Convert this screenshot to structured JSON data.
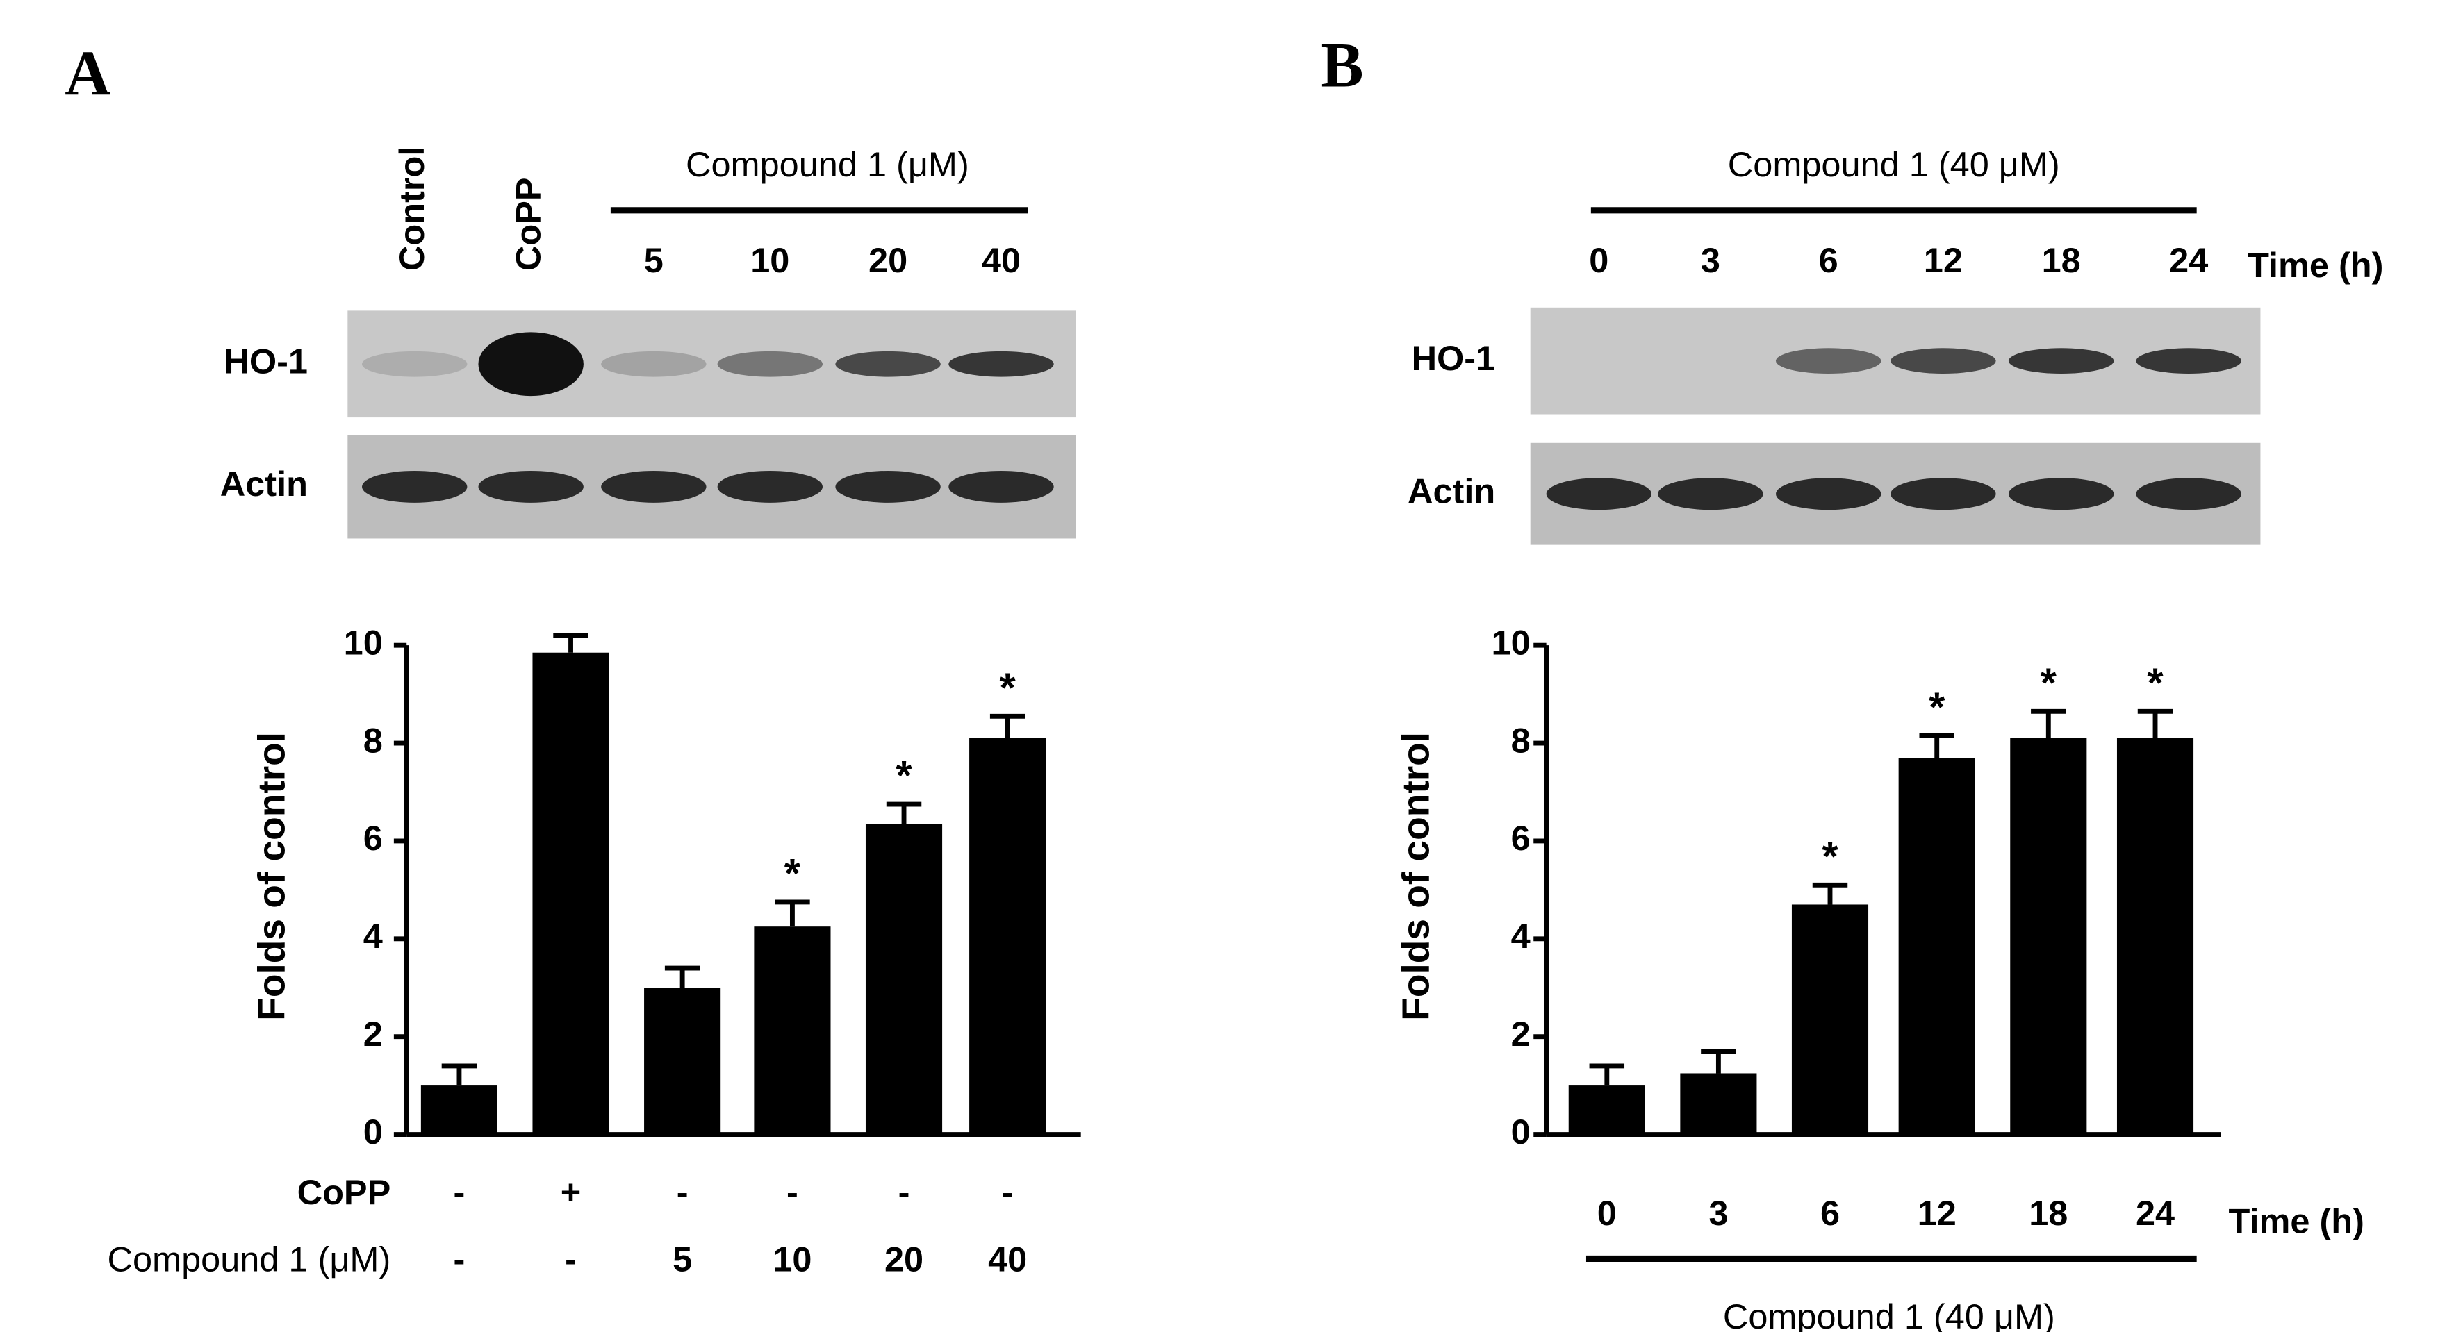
{
  "chart_data": [
    {
      "type": "bar",
      "panel_label": "A",
      "blot": {
        "header": "Compound 1 (μM)",
        "lanes": [
          "Control",
          "CoPP",
          "5",
          "10",
          "20",
          "40"
        ],
        "rows": [
          "HO-1",
          "Actin"
        ]
      },
      "category_rows": [
        {
          "name": "CoPP",
          "labels": [
            "-",
            "+",
            "-",
            "-",
            "-",
            "-"
          ]
        },
        {
          "name": "Compound 1 (μM)",
          "labels": [
            "-",
            "-",
            "5",
            "10",
            "20",
            "40"
          ]
        }
      ],
      "values": [
        1.0,
        9.85,
        3.0,
        4.25,
        6.35,
        8.1
      ],
      "errors": [
        0.4,
        0.35,
        0.4,
        0.5,
        0.4,
        0.45
      ],
      "significance": [
        null,
        null,
        null,
        "*",
        "*",
        "*"
      ],
      "ylabel": "Folds of control",
      "ylim": [
        0,
        10
      ],
      "yticks": [
        0,
        2,
        4,
        6,
        8,
        10
      ],
      "color": "#000000"
    },
    {
      "type": "bar",
      "panel_label": "B",
      "blot": {
        "header": "Compound 1 (40 μM)",
        "lanes": [
          "0",
          "3",
          "6",
          "12",
          "18",
          "24"
        ],
        "unit": "Time (h)",
        "rows": [
          "HO-1",
          "Actin"
        ]
      },
      "categories": [
        "0",
        "3",
        "6",
        "12",
        "18",
        "24"
      ],
      "xlabel": "Time (h)",
      "group_label": "Compound 1 (40 μM)",
      "values": [
        1.0,
        1.25,
        4.7,
        7.7,
        8.1,
        8.1
      ],
      "errors": [
        0.4,
        0.45,
        0.4,
        0.45,
        0.55,
        0.55
      ],
      "significance": [
        null,
        null,
        "*",
        "*",
        "*",
        "*"
      ],
      "ylabel": "Folds of control",
      "ylim": [
        0,
        10
      ],
      "yticks": [
        0,
        2,
        4,
        6,
        8,
        10
      ],
      "color": "#000000"
    }
  ]
}
